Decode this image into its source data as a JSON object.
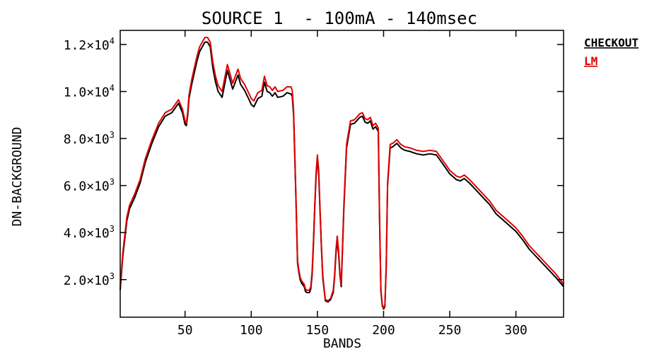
{
  "chart_data": {
    "type": "line",
    "title": "SOURCE 1  - 100mA - 140msec",
    "xlabel": "BANDS",
    "ylabel": "DN-BACKGROUND",
    "xlim": [
      1,
      336
    ],
    "ylim": [
      400,
      12600
    ],
    "xticks": [
      50,
      100,
      150,
      200,
      250,
      300
    ],
    "xtick_labels": [
      "50",
      "100",
      "150",
      "200",
      "250",
      "300"
    ],
    "yticks": [
      2000,
      4000,
      6000,
      8000,
      10000,
      12000
    ],
    "ytick_labels": [
      {
        "mantissa": "2.0",
        "exp": "3"
      },
      {
        "mantissa": "4.0",
        "exp": "3"
      },
      {
        "mantissa": "6.0",
        "exp": "3"
      },
      {
        "mantissa": "8.0",
        "exp": "3"
      },
      {
        "mantissa": "1.0",
        "exp": "4"
      },
      {
        "mantissa": "1.2",
        "exp": "4"
      }
    ],
    "grid": false,
    "legend_position": "right",
    "series": [
      {
        "name": "CHECKOUT",
        "color": "#000000",
        "x": [
          1,
          3,
          6,
          8,
          12,
          16,
          20,
          25,
          30,
          35,
          40,
          45,
          48,
          50,
          51,
          52,
          53,
          55,
          57,
          59,
          61,
          63,
          65,
          67,
          69,
          71,
          73,
          75,
          78,
          82,
          84,
          86,
          88,
          90,
          92,
          95,
          98,
          100,
          102,
          105,
          108,
          110,
          112,
          114,
          116,
          118,
          120,
          124,
          127,
          130,
          131,
          132,
          133,
          134,
          135,
          136,
          137,
          138,
          140,
          141,
          142,
          143,
          144,
          145,
          146,
          147,
          148,
          149,
          150,
          151,
          152,
          153,
          154,
          156,
          158,
          160,
          162,
          163,
          164,
          165,
          166,
          167,
          168,
          170,
          172,
          175,
          178,
          182,
          184,
          186,
          188,
          190,
          192,
          194,
          196,
          197,
          198,
          199,
          200,
          201,
          202,
          203,
          205,
          207,
          210,
          213,
          216,
          220,
          225,
          230,
          235,
          240,
          245,
          250,
          255,
          258,
          261,
          265,
          270,
          275,
          280,
          285,
          290,
          295,
          300,
          305,
          310,
          315,
          320,
          325,
          330,
          336
        ],
        "y": [
          1550,
          3000,
          4500,
          5000,
          5500,
          6100,
          7000,
          7800,
          8500,
          8950,
          9100,
          9500,
          9100,
          8600,
          8550,
          9000,
          9700,
          10300,
          10800,
          11300,
          11700,
          11900,
          12100,
          12100,
          11900,
          11000,
          10400,
          10000,
          9750,
          10900,
          10500,
          10100,
          10400,
          10700,
          10300,
          10050,
          9700,
          9450,
          9350,
          9700,
          9800,
          10400,
          10000,
          9950,
          9800,
          9950,
          9750,
          9800,
          9950,
          9900,
          9800,
          9000,
          7000,
          5000,
          2700,
          2300,
          2000,
          1850,
          1700,
          1500,
          1450,
          1450,
          1450,
          1600,
          2200,
          3500,
          5000,
          6400,
          7150,
          6500,
          4900,
          3400,
          2100,
          1100,
          1050,
          1150,
          1450,
          2100,
          3100,
          3700,
          3100,
          2200,
          1700,
          5000,
          7600,
          8600,
          8650,
          8900,
          8950,
          8700,
          8650,
          8750,
          8400,
          8500,
          8300,
          4500,
          1500,
          900,
          750,
          850,
          2500,
          6000,
          7600,
          7650,
          7800,
          7600,
          7500,
          7450,
          7350,
          7300,
          7350,
          7300,
          6900,
          6500,
          6250,
          6200,
          6300,
          6100,
          5800,
          5500,
          5200,
          4800,
          4550,
          4300,
          4050,
          3700,
          3300,
          3000,
          2700,
          2400,
          2100,
          1700
        ]
      },
      {
        "name": "LM",
        "color": "#e00000",
        "x": [
          1,
          3,
          6,
          8,
          12,
          16,
          20,
          25,
          30,
          35,
          40,
          45,
          48,
          50,
          51,
          52,
          53,
          55,
          57,
          59,
          61,
          63,
          65,
          67,
          69,
          71,
          73,
          75,
          78,
          82,
          84,
          86,
          88,
          90,
          92,
          95,
          98,
          100,
          102,
          105,
          108,
          110,
          112,
          114,
          116,
          118,
          120,
          124,
          127,
          130,
          131,
          132,
          133,
          134,
          135,
          136,
          137,
          138,
          140,
          141,
          142,
          143,
          144,
          145,
          146,
          147,
          148,
          149,
          150,
          151,
          152,
          153,
          154,
          156,
          158,
          160,
          162,
          163,
          164,
          165,
          166,
          167,
          168,
          170,
          172,
          175,
          178,
          182,
          184,
          186,
          188,
          190,
          192,
          194,
          196,
          197,
          198,
          199,
          200,
          201,
          202,
          203,
          205,
          207,
          210,
          213,
          216,
          220,
          225,
          230,
          235,
          240,
          245,
          250,
          255,
          258,
          261,
          265,
          270,
          275,
          280,
          285,
          290,
          295,
          300,
          305,
          310,
          315,
          320,
          325,
          330,
          336
        ],
        "y": [
          1650,
          3150,
          4650,
          5150,
          5650,
          6250,
          7150,
          7950,
          8650,
          9100,
          9250,
          9650,
          9250,
          8750,
          8650,
          9150,
          9850,
          10500,
          11000,
          11500,
          11900,
          12100,
          12300,
          12300,
          12100,
          11250,
          10650,
          10250,
          10000,
          11150,
          10750,
          10350,
          10650,
          10950,
          10550,
          10300,
          9950,
          9700,
          9600,
          9950,
          10050,
          10650,
          10250,
          10200,
          10050,
          10200,
          10000,
          10050,
          10200,
          10200,
          10050,
          9200,
          7150,
          5100,
          2800,
          2400,
          2100,
          1950,
          1800,
          1600,
          1550,
          1550,
          1550,
          1700,
          2350,
          3650,
          5150,
          6550,
          7300,
          6650,
          5000,
          3500,
          2200,
          1150,
          1100,
          1200,
          1550,
          2200,
          3250,
          3850,
          3250,
          2300,
          1800,
          5150,
          7750,
          8750,
          8800,
          9050,
          9100,
          8850,
          8800,
          8900,
          8550,
          8650,
          8450,
          4600,
          1550,
          950,
          800,
          900,
          2600,
          6100,
          7750,
          7800,
          7950,
          7750,
          7650,
          7600,
          7500,
          7450,
          7500,
          7450,
          7050,
          6650,
          6400,
          6350,
          6450,
          6250,
          5950,
          5650,
          5350,
          4950,
          4700,
          4450,
          4200,
          3850,
          3450,
          3150,
          2850,
          2550,
          2250,
          1800
        ]
      }
    ]
  }
}
